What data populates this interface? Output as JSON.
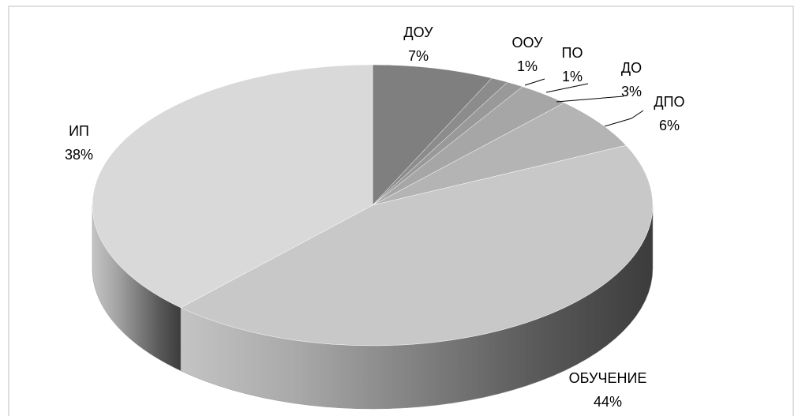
{
  "chart_data": {
    "type": "pie",
    "categories": [
      "ДОУ",
      "ООУ",
      "ПО",
      "ДО",
      "ДПО",
      "ОБУЧЕНИЕ",
      "ИП"
    ],
    "values": [
      7,
      1,
      1,
      3,
      6,
      44,
      38
    ],
    "value_labels": [
      "7%",
      "1%",
      "1%",
      "3%",
      "6%",
      "44%",
      "38%"
    ],
    "colors": [
      "#7f7f7f",
      "#8c8c8c",
      "#999999",
      "#a6a6a6",
      "#b4b4b4",
      "#c8c8c8",
      "#d9d9d9"
    ]
  }
}
